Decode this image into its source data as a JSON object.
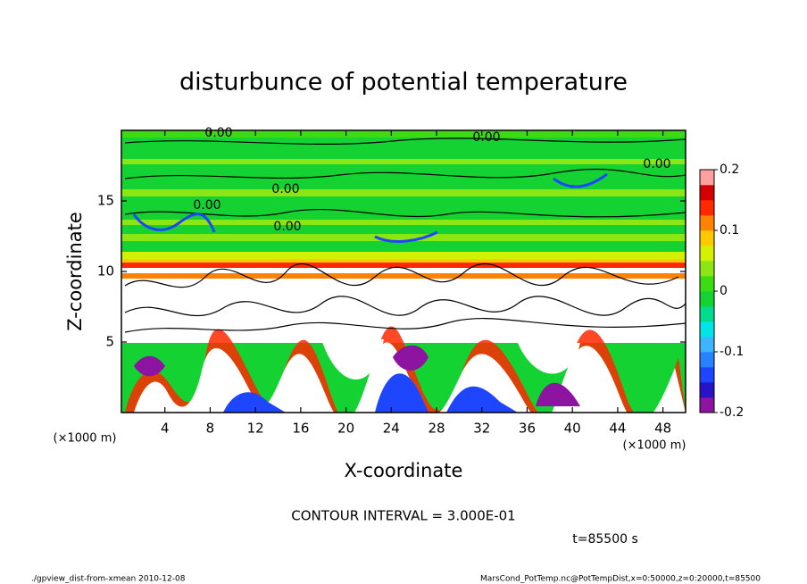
{
  "chart_data": {
    "type": "contour",
    "title": "disturbunce of potential temperature",
    "x_label": "X-coordinate",
    "y_label": "Z-coordinate",
    "x_unit": "(×1000 m)",
    "y_unit": "(×1000 m)",
    "xlim": [
      0,
      50
    ],
    "xticks": [
      4,
      8,
      12,
      16,
      20,
      24,
      28,
      32,
      36,
      40,
      44,
      48
    ],
    "ylim": [
      0,
      20
    ],
    "yticks": [
      5,
      10,
      15
    ],
    "colorbar": {
      "lim": [
        -0.2,
        0.2
      ],
      "ticks": [
        -0.2,
        -0.1,
        0,
        0.1,
        0.2
      ],
      "colors": [
        "#8c14a0",
        "#2814c8",
        "#1e46ff",
        "#2882ff",
        "#3cb4ff",
        "#00e6e6",
        "#00dc8c",
        "#14d232",
        "#3cdc14",
        "#8ce614",
        "#d2f000",
        "#ffc800",
        "#ff8200",
        "#ff2800",
        "#d20000",
        "#ffa0a0"
      ]
    },
    "contour_label": "0.00",
    "contour_interval": "CONTOUR INTERVAL = 3.000E-01",
    "time": "t=85500 s",
    "footer_left": "./gpview_dist-from-xmean  2010-12-08",
    "footer_right": "MarsCond_PotTemp.nc@PotTempDist,x=0:50000,z=0:20000,t=85500"
  }
}
